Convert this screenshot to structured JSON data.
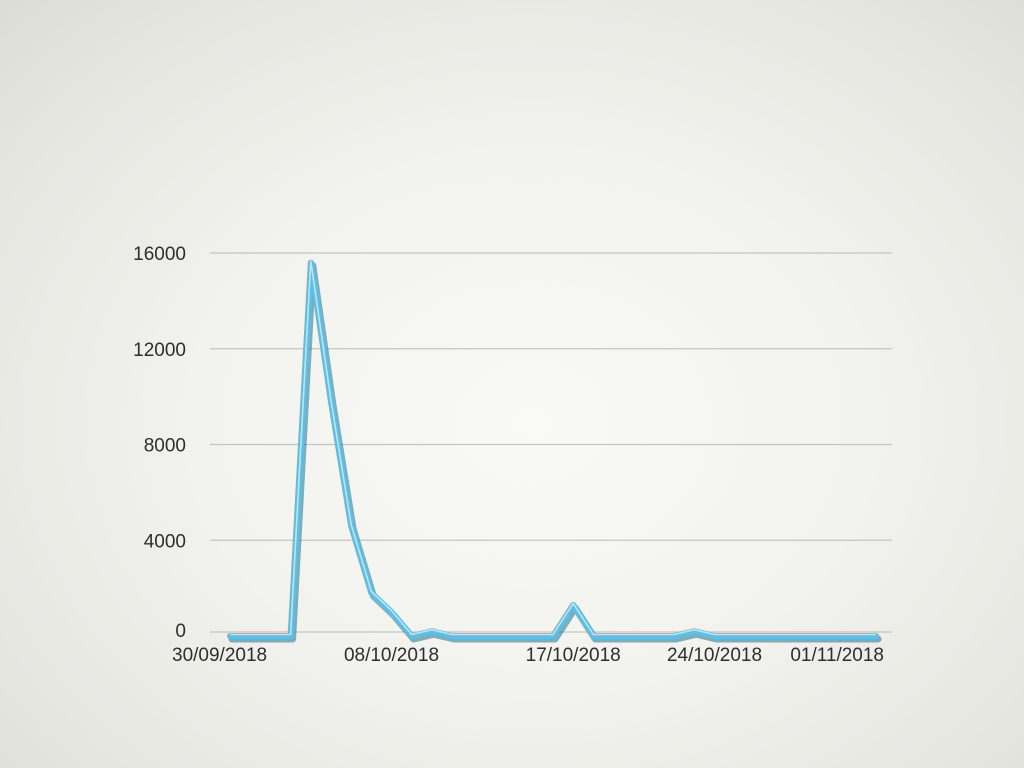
{
  "chart_data": {
    "type": "line",
    "title": "",
    "xlabel": "",
    "ylabel": "",
    "ylim": [
      0,
      16000
    ],
    "yticks": [
      "0",
      "4000",
      "8000",
      "12000",
      "16000"
    ],
    "grid": true,
    "legend": "none",
    "line_color": "#5fbfe3",
    "x": [
      "30/09/2018",
      "01/10/2018",
      "02/10/2018",
      "03/10/2018",
      "04/10/2018",
      "05/10/2018",
      "06/10/2018",
      "07/10/2018",
      "08/10/2018",
      "09/10/2018",
      "10/10/2018",
      "11/10/2018",
      "12/10/2018",
      "13/10/2018",
      "14/10/2018",
      "15/10/2018",
      "16/10/2018",
      "17/10/2018",
      "18/10/2018",
      "19/10/2018",
      "20/10/2018",
      "21/10/2018",
      "22/10/2018",
      "23/10/2018",
      "24/10/2018",
      "25/10/2018",
      "26/10/2018",
      "27/10/2018",
      "28/10/2018",
      "29/10/2018",
      "30/10/2018",
      "31/10/2018",
      "01/11/2018"
    ],
    "xtick_labels": [
      "30/09/2018",
      "08/10/2018",
      "17/10/2018",
      "24/10/2018",
      "01/11/2018"
    ],
    "series": [
      {
        "values": [
          0,
          0,
          0,
          0,
          15600,
          9800,
          4600,
          1800,
          1000,
          0,
          200,
          0,
          0,
          0,
          0,
          0,
          0,
          1300,
          0,
          0,
          0,
          0,
          0,
          200,
          0,
          0,
          0,
          0,
          0,
          0,
          0,
          0,
          0
        ]
      }
    ]
  }
}
